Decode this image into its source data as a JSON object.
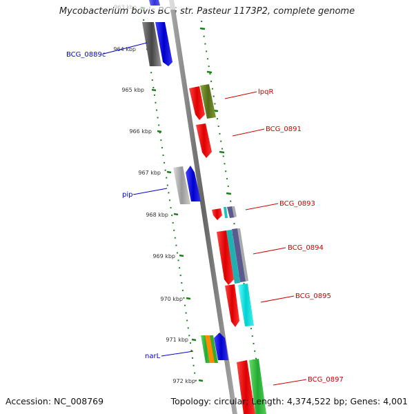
{
  "title": "Mycobacterium bovis BCG str. Pasteur 1173P2, complete genome",
  "footer": {
    "accession": "Accession: NC_008769",
    "summary": "Topology: circular; Length: 4,374,522 bp; Genes: 4,001"
  },
  "colors": {
    "backbone": "#808080",
    "tick": "#1a7f1a",
    "left_label": "#0000cc",
    "right_label": "#cc0000"
  },
  "kbp_ticks": [
    "963 kbp",
    "964 kbp",
    "965 kbp",
    "966 kbp",
    "967 kbp",
    "968 kbp",
    "969 kbp",
    "970 kbp",
    "971 kbp",
    "972 kbp"
  ],
  "gene_labels": {
    "left": [
      "BCG_0889c",
      "pip",
      "narL"
    ],
    "right": [
      "lpqR",
      "BCG_0891",
      "BCG_0893",
      "BCG_0894",
      "BCG_0895",
      "BCG_0897"
    ]
  },
  "features": [
    {
      "name": "grey-gene-top",
      "color": "#555555"
    },
    {
      "name": "blue-gene-top",
      "color": "#1a1ae6"
    },
    {
      "name": "red-gene-lpqR",
      "color": "#ee1111"
    },
    {
      "name": "olive-gene-lpqR",
      "color": "#6b8e23"
    },
    {
      "name": "red-gene-0891",
      "color": "#ee1111"
    },
    {
      "name": "grey-gene-pip",
      "color": "#aaaaaa"
    },
    {
      "name": "blue-gene-pip",
      "color": "#1a1ae6"
    },
    {
      "name": "red-gene-0893",
      "color": "#ee1111"
    },
    {
      "name": "multicolor-gene-0893",
      "color": "#2a9d8f"
    },
    {
      "name": "red-gene-0894",
      "color": "#ee1111"
    },
    {
      "name": "cyan-gene-0894",
      "color": "#20c0c0"
    },
    {
      "name": "slate-gene-0894",
      "color": "#5a5a90"
    },
    {
      "name": "red-gene-0895",
      "color": "#ee1111"
    },
    {
      "name": "cyan-gene-0895",
      "color": "#00e5e5"
    },
    {
      "name": "green-gene-narL",
      "color": "#44bb22"
    },
    {
      "name": "orange-gene-narL",
      "color": "#ff8c00"
    },
    {
      "name": "blue-gene-narL",
      "color": "#1a1ae6"
    },
    {
      "name": "red-gene-0897",
      "color": "#ee1111"
    },
    {
      "name": "green-gene-0897",
      "color": "#33cc44"
    }
  ]
}
